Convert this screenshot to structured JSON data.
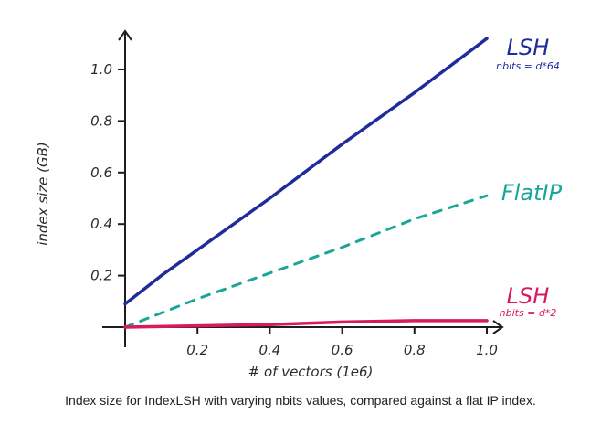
{
  "caption": "Index size for IndexLSH with varying nbits values, compared against a flat IP index.",
  "chart_data": {
    "type": "line",
    "title": "",
    "xlabel": "# of vectors (1e6)",
    "ylabel": "index size (GB)",
    "xlim": [
      0,
      1.02
    ],
    "ylim": [
      0,
      1.12
    ],
    "x_ticks": [
      "0.2",
      "0.4",
      "0.6",
      "0.8",
      "1.0"
    ],
    "y_ticks": [
      "0.2",
      "0.4",
      "0.6",
      "0.8",
      "1.0"
    ],
    "grid": false,
    "legend": "inline labels at line ends",
    "series": [
      {
        "name": "LSH",
        "note": "nbits = d*64",
        "color": "#1f2d9c",
        "style": "solid",
        "points": [
          [
            0,
            0.09
          ],
          [
            0.1,
            0.2
          ],
          [
            0.2,
            0.3
          ],
          [
            0.4,
            0.5
          ],
          [
            0.6,
            0.71
          ],
          [
            0.8,
            0.91
          ],
          [
            1.0,
            1.12
          ]
        ]
      },
      {
        "name": "FlatIP",
        "note": "",
        "color": "#1aa59a",
        "style": "dashed",
        "points": [
          [
            0,
            0.0
          ],
          [
            0.2,
            0.11
          ],
          [
            0.4,
            0.21
          ],
          [
            0.6,
            0.31
          ],
          [
            0.8,
            0.42
          ],
          [
            1.0,
            0.51
          ]
        ]
      },
      {
        "name": "LSH",
        "note": "nbits = d*2",
        "color": "#d81b60",
        "style": "solid",
        "points": [
          [
            0,
            0.0
          ],
          [
            0.2,
            0.005
          ],
          [
            0.4,
            0.01
          ],
          [
            0.6,
            0.02
          ],
          [
            0.8,
            0.025
          ],
          [
            1.0,
            0.025
          ]
        ]
      }
    ]
  }
}
